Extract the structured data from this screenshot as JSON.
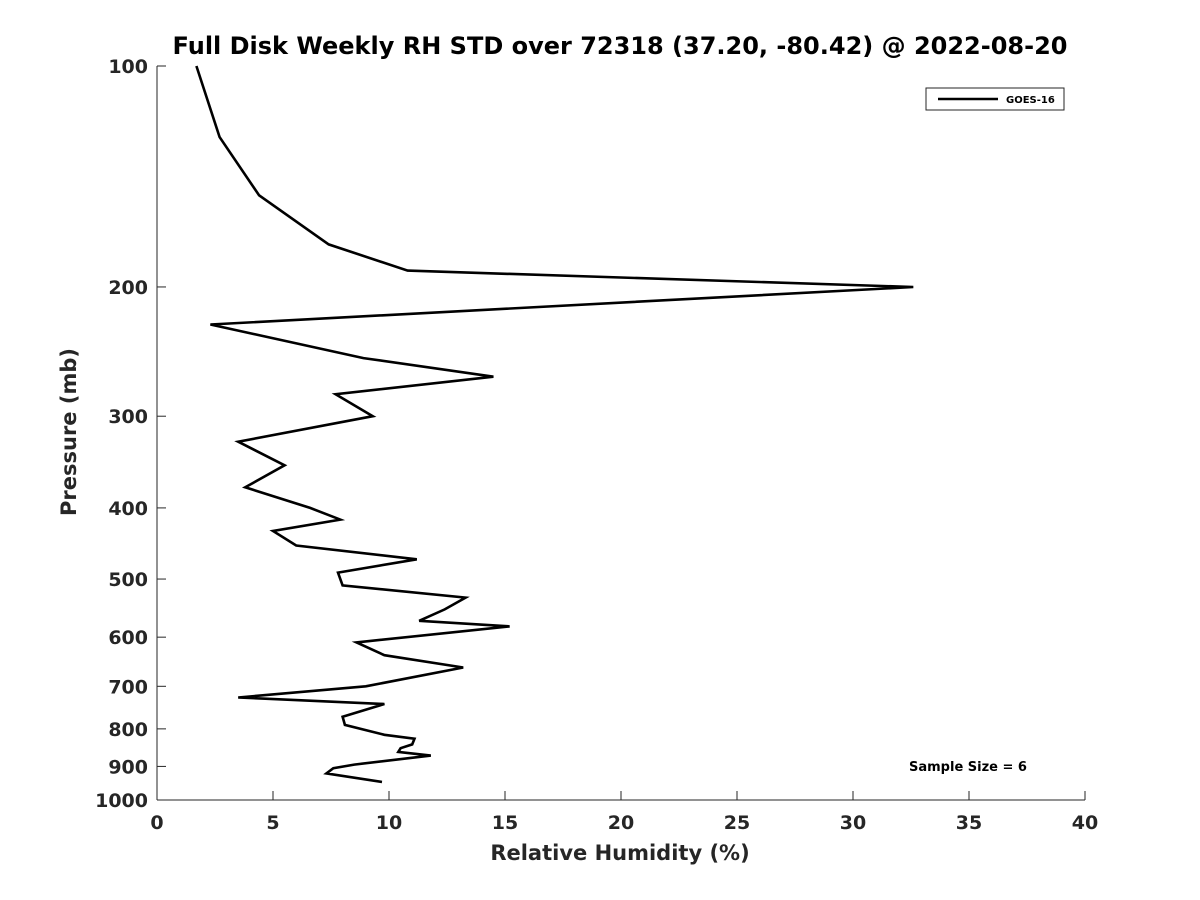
{
  "chart_data": {
    "type": "line",
    "title": "Full Disk Weekly RH STD over 72318 (37.20, -80.42) @ 2022-08-20",
    "xlabel": "Relative Humidity (%)",
    "ylabel": "Pressure (mb)",
    "xlim": [
      0,
      40
    ],
    "ylim": [
      100,
      1000
    ],
    "y_scale": "log",
    "y_reversed": true,
    "x_ticks": [
      0,
      5,
      10,
      15,
      20,
      25,
      30,
      35,
      40
    ],
    "x_tick_labels": [
      "0",
      "5",
      "10",
      "15",
      "20",
      "25",
      "30",
      "35",
      "40"
    ],
    "y_ticks": [
      100,
      200,
      300,
      400,
      500,
      600,
      700,
      800,
      900,
      1000
    ],
    "y_tick_labels": [
      "100",
      "200",
      "300",
      "400",
      "500",
      "600",
      "700",
      "800",
      "900",
      "1000"
    ],
    "grid": false,
    "legend_position": "top-right",
    "series": [
      {
        "name": "GOES-16",
        "color": "#000000",
        "x": [
          1.7,
          2.7,
          4.4,
          7.4,
          10.8,
          32.6,
          2.3,
          8.9,
          14.5,
          7.7,
          9.3,
          3.5,
          5.5,
          3.8,
          6.6,
          7.9,
          5.0,
          6.0,
          11.2,
          7.8,
          8.0,
          13.3,
          12.4,
          11.3,
          15.2,
          8.6,
          9.8,
          13.2,
          9.0,
          3.5,
          9.8,
          8.0,
          8.1,
          9.8,
          11.1,
          11.0,
          10.5,
          10.4,
          11.8,
          8.5,
          7.6,
          7.3,
          9.7
        ],
        "y": [
          100,
          125,
          150,
          175,
          190,
          200,
          225,
          250,
          265,
          280,
          300,
          325,
          350,
          375,
          400,
          415,
          430,
          450,
          470,
          490,
          510,
          530,
          550,
          570,
          580,
          610,
          635,
          660,
          700,
          725,
          740,
          770,
          790,
          815,
          825,
          840,
          850,
          860,
          870,
          895,
          905,
          920,
          945
        ]
      }
    ],
    "legend": [
      "GOES-16"
    ],
    "annotations": [
      "Sample Size = 6"
    ]
  }
}
